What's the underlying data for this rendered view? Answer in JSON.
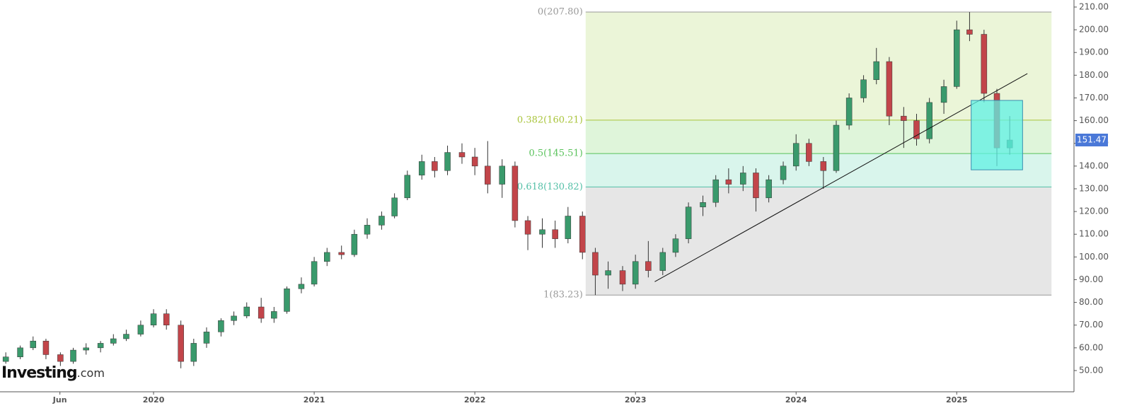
{
  "chart_data": {
    "type": "candlestick",
    "x": [
      2019.08,
      2019.17,
      2019.25,
      2019.33,
      2019.42,
      2019.5,
      2019.58,
      2019.67,
      2019.75,
      2019.83,
      2019.92,
      2020.0,
      2020.08,
      2020.17,
      2020.25,
      2020.33,
      2020.42,
      2020.5,
      2020.58,
      2020.67,
      2020.75,
      2020.83,
      2020.92,
      2021.0,
      2021.08,
      2021.17,
      2021.25,
      2021.33,
      2021.42,
      2021.5,
      2021.58,
      2021.67,
      2021.75,
      2021.83,
      2021.92,
      2022.0,
      2022.08,
      2022.17,
      2022.25,
      2022.33,
      2022.42,
      2022.5,
      2022.58,
      2022.67,
      2022.75,
      2022.83,
      2022.92,
      2023.0,
      2023.08,
      2023.17,
      2023.25,
      2023.33,
      2023.42,
      2023.5,
      2023.58,
      2023.67,
      2023.75,
      2023.83,
      2023.92,
      2024.0,
      2024.08,
      2024.17,
      2024.25,
      2024.33,
      2024.42,
      2024.5,
      2024.58,
      2024.67,
      2024.75,
      2024.83,
      2024.92,
      2025.0,
      2025.08,
      2025.17,
      2025.25,
      2025.33
    ],
    "open": [
      54,
      56,
      60,
      63,
      57,
      54,
      59,
      60,
      62,
      64,
      66,
      70,
      75,
      70,
      54,
      62,
      67,
      72,
      74,
      78,
      73,
      76,
      86,
      88,
      98,
      102,
      101,
      110,
      114,
      118,
      126,
      136,
      142,
      138,
      146,
      144,
      140,
      132,
      140,
      116,
      110,
      112,
      108,
      118,
      102,
      92,
      94,
      88,
      98,
      94,
      102,
      108,
      122,
      124,
      134,
      132,
      137,
      126,
      134,
      140,
      150,
      142,
      138,
      158,
      170,
      178,
      186,
      162,
      160,
      152,
      168,
      175,
      200,
      198,
      172,
      148
    ],
    "high": [
      58,
      61,
      65,
      64,
      58,
      60,
      62,
      63,
      66,
      68,
      72,
      77,
      77,
      72,
      64,
      69,
      73,
      76,
      80,
      82,
      78,
      87,
      91,
      100,
      104,
      105,
      112,
      117,
      120,
      128,
      138,
      145,
      144,
      149,
      150,
      148,
      151,
      143,
      142,
      118,
      117,
      116,
      122,
      120,
      104,
      98,
      96,
      101,
      107,
      104,
      110,
      124,
      127,
      136,
      139,
      140,
      139,
      136,
      142,
      154,
      152,
      144,
      160,
      172,
      180,
      192,
      188,
      166,
      163,
      170,
      178,
      204,
      207.8,
      200,
      174,
      162
    ],
    "low": [
      53,
      55,
      59,
      55,
      52,
      53,
      57,
      58,
      61,
      63,
      65,
      69,
      68,
      51,
      52,
      60,
      65,
      70,
      73,
      71,
      71,
      75,
      84,
      87,
      96,
      99,
      100,
      108,
      112,
      117,
      125,
      134,
      135,
      136,
      141,
      136,
      128,
      126,
      113,
      103,
      104,
      104,
      106,
      99,
      83.23,
      86,
      85,
      86,
      91,
      92,
      100,
      106,
      118,
      122,
      128,
      129,
      120,
      124,
      132,
      138,
      140,
      130,
      137,
      156,
      168,
      176,
      158,
      148,
      149,
      150,
      163,
      174,
      195,
      168,
      140,
      145
    ],
    "close": [
      56,
      60,
      63,
      57,
      54,
      59,
      60,
      62,
      64,
      66,
      70,
      75,
      70,
      54,
      62,
      67,
      72,
      74,
      78,
      73,
      76,
      86,
      88,
      98,
      102,
      101,
      110,
      114,
      118,
      126,
      136,
      142,
      138,
      146,
      144,
      140,
      132,
      140,
      116,
      110,
      112,
      108,
      118,
      102,
      92,
      94,
      88,
      98,
      94,
      102,
      108,
      122,
      124,
      134,
      132,
      137,
      126,
      134,
      140,
      150,
      142,
      138,
      158,
      170,
      178,
      186,
      162,
      160,
      152,
      168,
      175,
      200,
      198,
      172,
      148,
      151.47
    ],
    "up_color": "#3a9a6c",
    "down_color": "#c2454a",
    "xlim": [
      2019.044,
      2025.73
    ],
    "xticks": [
      {
        "value": 2019.417,
        "label": "Jun"
      },
      2020,
      2021,
      2022,
      2023,
      2024,
      2025
    ],
    "ylim": [
      40.65,
      213.1
    ],
    "yticks": [
      {
        "value": 50,
        "label": "50.00"
      },
      {
        "value": 60,
        "label": "60.00"
      },
      {
        "value": 70,
        "label": "70.00"
      },
      {
        "value": 80,
        "label": "80.00"
      },
      {
        "value": 90,
        "label": "90.00"
      },
      {
        "value": 100,
        "label": "100.00"
      },
      {
        "value": 110,
        "label": "110.00"
      },
      {
        "value": 120,
        "label": "120.00"
      },
      {
        "value": 130,
        "label": "130.00"
      },
      {
        "value": 140,
        "label": "140.00"
      },
      {
        "value": 150,
        "label": "150.00"
      },
      {
        "value": 160,
        "label": "160.00"
      },
      {
        "value": 170,
        "label": "170.00"
      },
      {
        "value": 180,
        "label": "180.00"
      },
      {
        "value": 190,
        "label": "190.00"
      },
      {
        "value": 200,
        "label": "200.00"
      },
      {
        "value": 210,
        "label": "210.00"
      }
    ],
    "fib_x": [
      2022.69,
      2025.59
    ],
    "fib_levels": [
      {
        "value": 207.8,
        "label": "0(207.80)",
        "color": "#999999",
        "fill": "#ebf5d8"
      },
      {
        "value": 160.21,
        "label": "0.382(160.21)",
        "color": "#a9c43a",
        "fill": "#dff5da"
      },
      {
        "value": 145.51,
        "label": "0.5(145.51)",
        "color": "#58c25a",
        "fill": "#d9f5ec"
      },
      {
        "value": 130.82,
        "label": "0.618(130.82)",
        "color": "#52bfa6",
        "fill": "#e6e6e6"
      },
      {
        "value": 83.23,
        "label": "1(83.23)",
        "color": "#999999"
      }
    ],
    "trendline": {
      "x": [
        2023.12,
        2025.44
      ],
      "y": [
        89.1,
        180.7
      ]
    },
    "box": {
      "x": [
        2025.09,
        2025.41
      ],
      "y": [
        138.35,
        168.9
      ],
      "color": "#5ff0e4"
    },
    "last_price": 151.47,
    "last_price_color": "#4a78d8",
    "watermark": {
      "brand": "Investing",
      "suffix": ".com"
    }
  }
}
